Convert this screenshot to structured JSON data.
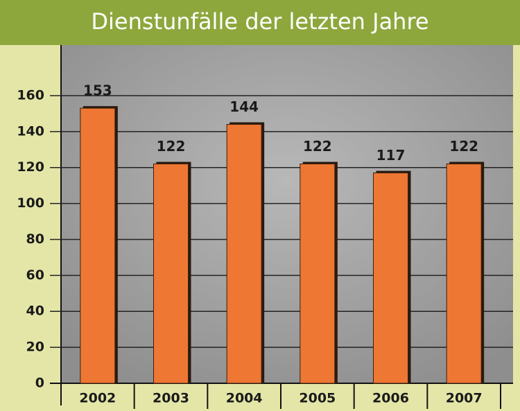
{
  "chart_data": {
    "type": "bar",
    "title": "Dienstunfälle der letzten Jahre",
    "categories": [
      "2002",
      "2003",
      "2004",
      "2005",
      "2006",
      "2007"
    ],
    "values": [
      153,
      122,
      144,
      122,
      117,
      122
    ],
    "color": "#ee7733",
    "ylim": [
      0,
      180
    ],
    "yticks": [
      0,
      20,
      40,
      60,
      80,
      100,
      120,
      140,
      160
    ],
    "grid": true
  }
}
